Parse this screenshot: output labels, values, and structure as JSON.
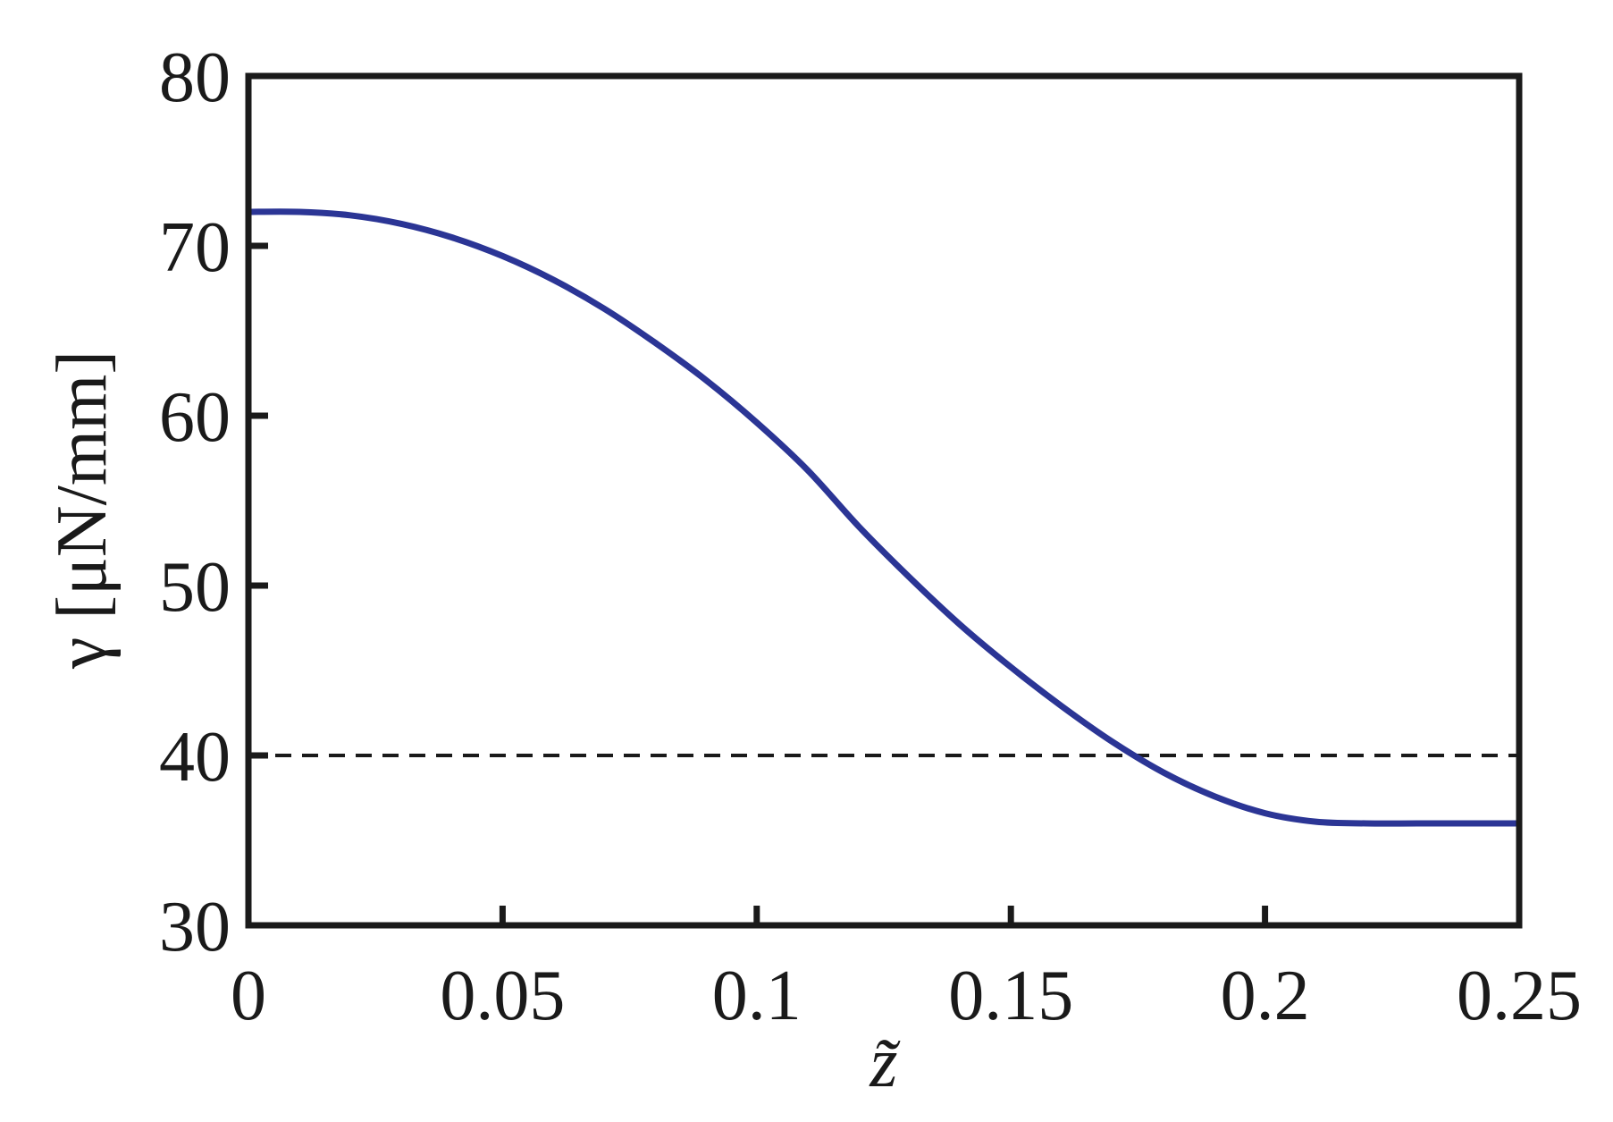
{
  "chart_data": {
    "type": "line",
    "xlabel": "z̃",
    "ylabel": "γ [μN/mm]",
    "xlim": [
      0,
      0.25
    ],
    "ylim": [
      30,
      80
    ],
    "xticks": [
      0,
      0.05,
      0.1,
      0.15,
      0.2,
      0.25
    ],
    "xtick_labels": [
      "0",
      "0.05",
      "0.1",
      "0.15",
      "0.2",
      "0.25"
    ],
    "yticks": [
      30,
      40,
      50,
      60,
      70,
      80
    ],
    "ytick_labels": [
      "30",
      "40",
      "50",
      "60",
      "70",
      "80"
    ],
    "grid": false,
    "series": [
      {
        "color": "#2b3595",
        "x": [
          0,
          0.01,
          0.02,
          0.03,
          0.04,
          0.05,
          0.06,
          0.07,
          0.08,
          0.09,
          0.1,
          0.11,
          0.12,
          0.13,
          0.14,
          0.15,
          0.16,
          0.17,
          0.18,
          0.19,
          0.2,
          0.21,
          0.22,
          0.23,
          0.24,
          0.25
        ],
        "values": [
          72,
          72,
          71.8,
          71.3,
          70.5,
          69.4,
          68.0,
          66.3,
          64.3,
          62.1,
          59.6,
          56.8,
          53.5,
          50.5,
          47.7,
          45.2,
          42.9,
          40.8,
          39.0,
          37.6,
          36.6,
          36.1,
          36,
          36,
          36,
          36
        ]
      }
    ],
    "reference_line": {
      "y": 40,
      "style": "dashed",
      "color": "#1a1a1a"
    }
  }
}
